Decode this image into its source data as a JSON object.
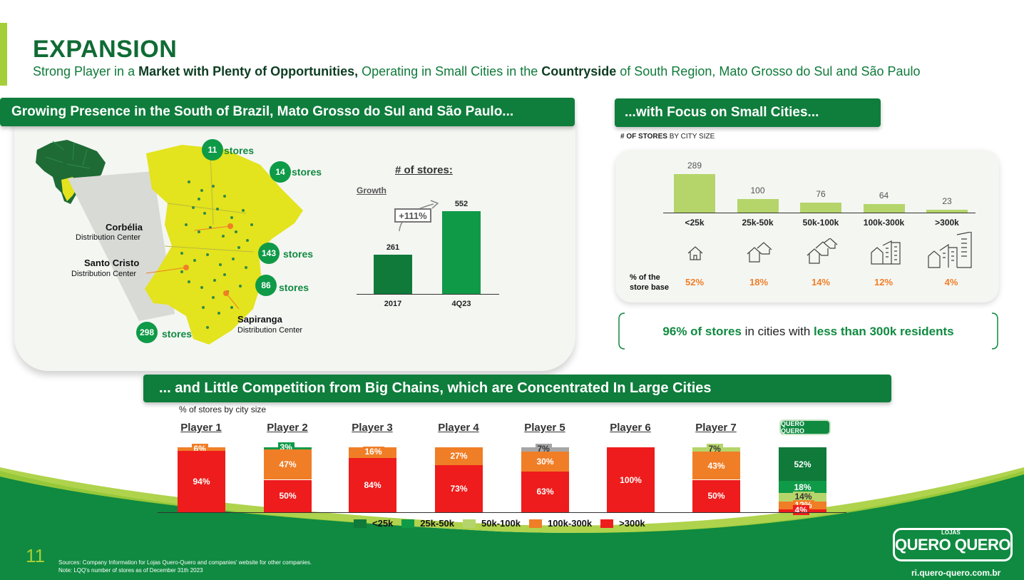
{
  "header": {
    "title": "EXPANSION",
    "subtitle_parts": [
      "Strong Player in a ",
      "Market with Plenty of Opportunities,",
      " Operating in Small Cities in the ",
      "Countryside",
      " of South Region, Mato Grosso do Sul and São Paulo"
    ]
  },
  "left_section": {
    "banner": "Growing Presence in the South of Brazil, Mato Grosso do Sul and São Paulo...",
    "state_counts": [
      {
        "count": "11",
        "label": "stores"
      },
      {
        "count": "14",
        "label": "stores"
      },
      {
        "count": "143",
        "label": "stores"
      },
      {
        "count": "86",
        "label": "stores"
      },
      {
        "count": "298",
        "label": "stores"
      }
    ],
    "distribution_centers": [
      {
        "name": "Corbélia",
        "sub": "Distribution Center"
      },
      {
        "name": "Santo Cristo",
        "sub": "Distribution Center"
      },
      {
        "name": "Sapiranga",
        "sub": "Distribution Center"
      }
    ]
  },
  "store_growth": {
    "title": "# of stores:",
    "growth_label": "Growth",
    "growth_badge": "+111%"
  },
  "city_section": {
    "banner": "...with Focus on Small Cities...",
    "caption_bold": "# OF STORES",
    "caption_rest": " BY CITY SIZE",
    "base_label_1": "% of the",
    "base_label_2": "store base",
    "percentages": [
      "52%",
      "18%",
      "14%",
      "12%",
      "4%"
    ]
  },
  "callout": {
    "p1": "96% of stores",
    "p2": " in cities with ",
    "p3": "less than 300k residents"
  },
  "competition": {
    "banner": "... and Little Competition from Big Chains, which are Concentrated In Large Cities",
    "caption": "% of stores by city size",
    "logo_text": "QUERO QUERO"
  },
  "legend": [
    "<25k",
    "25k-50k",
    "50k-100k",
    "100k-300k",
    ">300k"
  ],
  "colors": {
    "lt25k": "#0f7a3a",
    "k25_50": "#0f9a48",
    "k50_100": "#b5d56a",
    "k100_300": "#f07e26",
    "gt300k": "#ee1c1c",
    "other": "#a6a6a6",
    "brand_green": "#0f7d3c",
    "lime": "#a6ce39"
  },
  "footer": {
    "page_number": "11",
    "source_1": "Sources: Company Information for Lojas Quero-Quero and companies' website for other companies.",
    "source_2": "Note: LQQ's number of stores as of December 31th 2023",
    "website": "ri.quero-quero.com.br",
    "logo_super": "LOJAS",
    "logo_text": "QUERO QUERO"
  },
  "chart_data": [
    {
      "type": "bar",
      "title": "# of stores:",
      "categories": [
        "2017",
        "4Q23"
      ],
      "values": [
        261,
        552
      ],
      "ylim": [
        0,
        620
      ]
    },
    {
      "type": "bar",
      "title": "# OF STORES BY CITY SIZE",
      "categories": [
        "<25k",
        "25k-50k",
        "50k-100k",
        "100k-300k",
        ">300k"
      ],
      "values": [
        289,
        100,
        76,
        64,
        23
      ],
      "ylim": [
        0,
        320
      ]
    },
    {
      "type": "bar",
      "title": "% of stores by city size",
      "stacked": true,
      "players": [
        {
          "name": "Player 1",
          "segments": [
            {
              "series": "100k-300k",
              "value": 6
            },
            {
              "series": ">300k",
              "value": 94
            }
          ]
        },
        {
          "name": "Player 2",
          "segments": [
            {
              "series": "25k-50k",
              "value": 3
            },
            {
              "series": "100k-300k",
              "value": 47
            },
            {
              "series": ">300k",
              "value": 50
            }
          ]
        },
        {
          "name": "Player 3",
          "segments": [
            {
              "series": "100k-300k",
              "value": 16
            },
            {
              "series": ">300k",
              "value": 84
            }
          ]
        },
        {
          "name": "Player 4",
          "segments": [
            {
              "series": "100k-300k",
              "value": 27
            },
            {
              "series": ">300k",
              "value": 73
            }
          ]
        },
        {
          "name": "Player 5",
          "segments": [
            {
              "series": "other",
              "value": 7
            },
            {
              "series": "100k-300k",
              "value": 30
            },
            {
              "series": ">300k",
              "value": 63
            }
          ]
        },
        {
          "name": "Player 6",
          "segments": [
            {
              "series": ">300k",
              "value": 100
            }
          ]
        },
        {
          "name": "Player 7",
          "segments": [
            {
              "series": "50k-100k",
              "value": 7
            },
            {
              "series": "100k-300k",
              "value": 43
            },
            {
              "series": ">300k",
              "value": 50
            }
          ]
        },
        {
          "name": "",
          "segments": [
            {
              "series": "<25k",
              "value": 52
            },
            {
              "series": "25k-50k",
              "value": 18
            },
            {
              "series": "50k-100k",
              "value": 14
            },
            {
              "series": "100k-300k",
              "value": 12
            },
            {
              "series": ">300k",
              "value": 4
            }
          ]
        }
      ],
      "ylim": [
        0,
        100
      ],
      "legend": "bottom"
    }
  ]
}
